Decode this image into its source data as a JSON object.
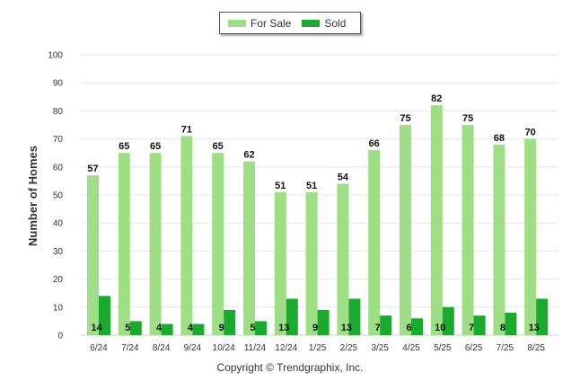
{
  "legend": {
    "for_sale_label": "For Sale",
    "sold_label": "Sold"
  },
  "colors": {
    "for_sale": "#9ede84",
    "sold": "#1aaa2e",
    "grid": "#e6e6e6",
    "axis": "#cccccc"
  },
  "credit": "Copyright © Trendgraphix, Inc.",
  "chart_data": {
    "type": "bar",
    "categories": [
      "6/24",
      "7/24",
      "8/24",
      "9/24",
      "10/24",
      "11/24",
      "12/24",
      "1/25",
      "2/25",
      "3/25",
      "4/25",
      "5/25",
      "6/25",
      "7/25",
      "8/25"
    ],
    "series": [
      {
        "name": "For Sale",
        "values": [
          57,
          65,
          65,
          71,
          65,
          62,
          51,
          51,
          54,
          66,
          75,
          82,
          75,
          68,
          70
        ]
      },
      {
        "name": "Sold",
        "values": [
          14,
          5,
          4,
          4,
          9,
          5,
          13,
          9,
          13,
          7,
          6,
          10,
          7,
          8,
          13
        ]
      }
    ],
    "ylabel": "Number of Homes",
    "xlabel": "",
    "ylim": [
      0,
      100
    ],
    "yticks": [
      0,
      10,
      20,
      30,
      40,
      50,
      60,
      70,
      80,
      90,
      100
    ],
    "grid": true,
    "legend_position": "top-center"
  }
}
